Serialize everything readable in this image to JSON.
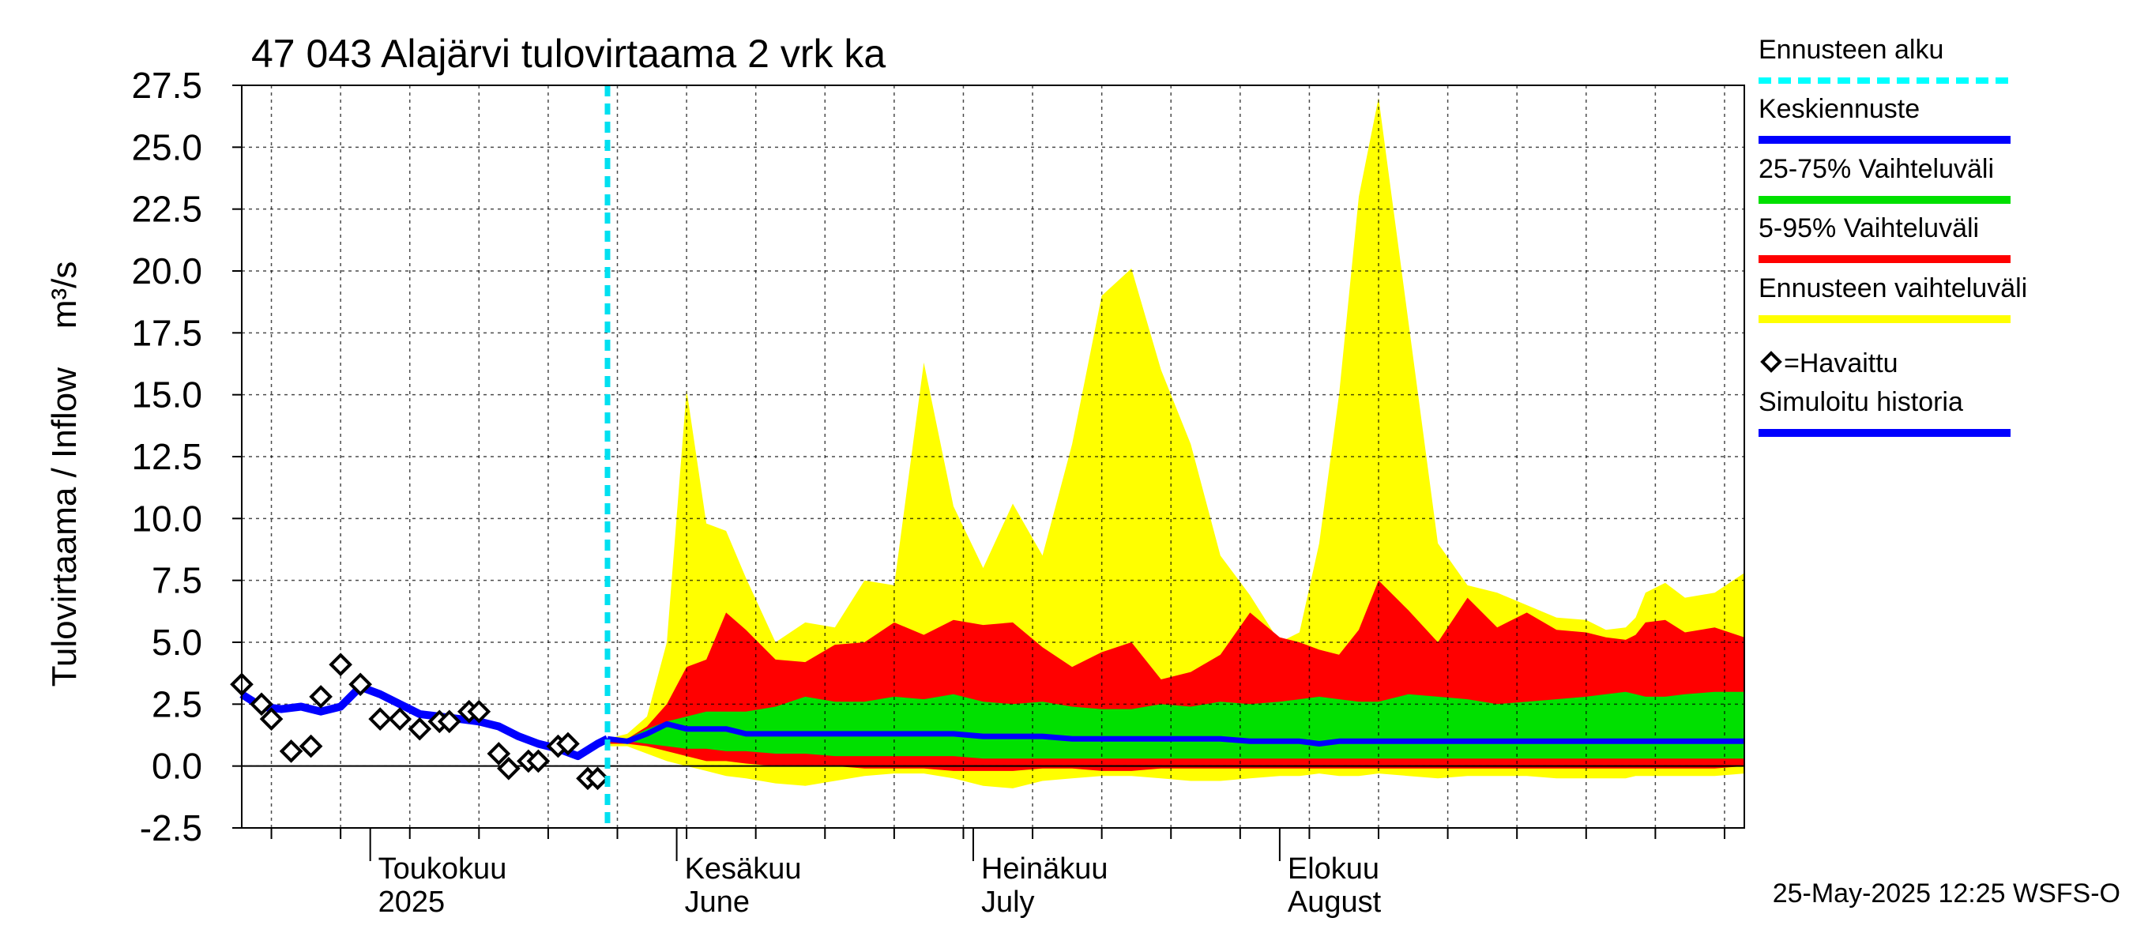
{
  "chart_data": {
    "type": "area",
    "title": "47 043 Alajärvi tulovirtaama 2 vrk ka",
    "ylabel": "Tulovirtaama / Inflow    m³/s",
    "ylim": [
      -2.5,
      27.5
    ],
    "yticks": [
      "27.5",
      "25.0",
      "22.5",
      "20.0",
      "17.5",
      "15.0",
      "12.5",
      "10.0",
      "7.5",
      "5.0",
      "2.5",
      "0.0",
      "-2.5"
    ],
    "ytick_values": [
      27.5,
      25.0,
      22.5,
      20.0,
      17.5,
      15.0,
      12.5,
      10.0,
      7.5,
      5.0,
      2.5,
      0.0,
      -2.5
    ],
    "x_start": "2025-04-18",
    "x_end": "2025-09-17",
    "forecast_start": "2025-05-25",
    "month_labels": [
      {
        "date": "2025-05-01",
        "line1": "Toukokuu",
        "line2": "2025"
      },
      {
        "date": "2025-06-01",
        "line1": "Kesäkuu",
        "line2": "June"
      },
      {
        "date": "2025-07-01",
        "line1": "Heinäkuu",
        "line2": "July"
      },
      {
        "date": "2025-08-01",
        "line1": "Elokuu",
        "line2": "August"
      }
    ],
    "forecast_x": [
      "2025-05-25",
      "2025-05-27",
      "2025-05-29",
      "2025-05-31",
      "2025-06-02",
      "2025-06-04",
      "2025-06-06",
      "2025-06-08",
      "2025-06-11",
      "2025-06-14",
      "2025-06-17",
      "2025-06-20",
      "2025-06-23",
      "2025-06-26",
      "2025-06-29",
      "2025-07-02",
      "2025-07-05",
      "2025-07-08",
      "2025-07-11",
      "2025-07-14",
      "2025-07-17",
      "2025-07-20",
      "2025-07-23",
      "2025-07-26",
      "2025-07-29",
      "2025-08-01",
      "2025-08-03",
      "2025-08-05",
      "2025-08-07",
      "2025-08-09",
      "2025-08-11",
      "2025-08-14",
      "2025-08-17",
      "2025-08-20",
      "2025-08-23",
      "2025-08-26",
      "2025-08-29",
      "2025-09-01",
      "2025-09-03",
      "2025-09-05",
      "2025-09-06",
      "2025-09-07",
      "2025-09-09",
      "2025-09-11",
      "2025-09-14",
      "2025-09-17"
    ],
    "series": [
      {
        "name": "Ennusteen vaihteluväli",
        "color": "#ffff00",
        "upper": [
          1.1,
          1.3,
          2.0,
          5.0,
          15.2,
          9.8,
          9.5,
          7.6,
          5.0,
          5.8,
          5.6,
          7.5,
          7.3,
          16.3,
          10.5,
          8.0,
          10.6,
          8.5,
          13.0,
          19.0,
          20.1,
          16.0,
          13.0,
          8.5,
          6.9,
          5.0,
          5.4,
          9.0,
          15.0,
          23.0,
          27.0,
          18.0,
          9.0,
          7.3,
          7.0,
          6.5,
          6.0,
          5.9,
          5.5,
          5.6,
          6.0,
          7.0,
          7.4,
          6.8,
          7.0,
          7.8
        ],
        "lower": [
          0.8,
          0.8,
          0.5,
          0.2,
          0.0,
          -0.2,
          -0.4,
          -0.5,
          -0.7,
          -0.8,
          -0.6,
          -0.4,
          -0.3,
          -0.3,
          -0.5,
          -0.8,
          -0.9,
          -0.6,
          -0.5,
          -0.4,
          -0.4,
          -0.5,
          -0.6,
          -0.6,
          -0.5,
          -0.4,
          -0.4,
          -0.3,
          -0.4,
          -0.4,
          -0.3,
          -0.4,
          -0.5,
          -0.4,
          -0.4,
          -0.4,
          -0.5,
          -0.5,
          -0.5,
          -0.5,
          -0.4,
          -0.4,
          -0.4,
          -0.4,
          -0.4,
          -0.3
        ]
      },
      {
        "name": "5-95% Vaihteluväli",
        "color": "#ff0000",
        "upper": [
          1.0,
          1.1,
          1.6,
          2.5,
          4.0,
          4.3,
          6.2,
          5.5,
          4.3,
          4.2,
          4.9,
          5.0,
          5.8,
          5.3,
          5.9,
          5.7,
          5.8,
          4.8,
          4.0,
          4.6,
          5.0,
          3.5,
          3.8,
          4.5,
          6.2,
          5.2,
          5.0,
          4.7,
          4.5,
          5.5,
          7.5,
          6.3,
          5.0,
          6.8,
          5.6,
          6.2,
          5.5,
          5.4,
          5.2,
          5.1,
          5.3,
          5.8,
          5.9,
          5.4,
          5.6,
          5.2
        ],
        "lower": [
          0.9,
          0.9,
          0.8,
          0.6,
          0.4,
          0.2,
          0.2,
          0.1,
          0.0,
          0.0,
          0.0,
          -0.1,
          -0.1,
          -0.1,
          -0.2,
          -0.2,
          -0.2,
          -0.1,
          -0.1,
          -0.2,
          -0.2,
          -0.1,
          -0.1,
          -0.1,
          -0.1,
          -0.1,
          -0.1,
          -0.1,
          -0.1,
          -0.1,
          -0.1,
          -0.1,
          -0.1,
          -0.1,
          -0.1,
          -0.1,
          -0.1,
          -0.1,
          -0.1,
          -0.1,
          -0.1,
          -0.1,
          -0.1,
          -0.1,
          -0.1,
          0.0
        ]
      },
      {
        "name": "25-75% Vaihteluväli",
        "color": "#00e000",
        "upper": [
          1.0,
          1.1,
          1.5,
          1.8,
          2.0,
          2.2,
          2.2,
          2.2,
          2.4,
          2.8,
          2.6,
          2.6,
          2.8,
          2.7,
          2.9,
          2.6,
          2.5,
          2.6,
          2.4,
          2.3,
          2.3,
          2.5,
          2.4,
          2.6,
          2.5,
          2.6,
          2.7,
          2.8,
          2.7,
          2.6,
          2.6,
          2.9,
          2.8,
          2.7,
          2.5,
          2.6,
          2.7,
          2.8,
          2.9,
          3.0,
          2.9,
          2.8,
          2.8,
          2.9,
          3.0,
          3.0
        ],
        "lower": [
          1.0,
          1.0,
          0.9,
          0.8,
          0.7,
          0.7,
          0.6,
          0.6,
          0.5,
          0.5,
          0.4,
          0.4,
          0.4,
          0.4,
          0.4,
          0.3,
          0.3,
          0.3,
          0.3,
          0.3,
          0.3,
          0.3,
          0.3,
          0.3,
          0.3,
          0.3,
          0.3,
          0.3,
          0.3,
          0.3,
          0.3,
          0.3,
          0.3,
          0.3,
          0.3,
          0.3,
          0.3,
          0.3,
          0.3,
          0.3,
          0.3,
          0.3,
          0.3,
          0.3,
          0.3,
          0.3
        ]
      },
      {
        "name": "Keskiennuste",
        "color": "#0000ff",
        "values": [
          1.1,
          1.0,
          1.3,
          1.7,
          1.5,
          1.5,
          1.5,
          1.3,
          1.3,
          1.3,
          1.3,
          1.3,
          1.3,
          1.3,
          1.3,
          1.2,
          1.2,
          1.2,
          1.1,
          1.1,
          1.1,
          1.1,
          1.1,
          1.1,
          1.0,
          1.0,
          1.0,
          0.9,
          1.0,
          1.0,
          1.0,
          1.0,
          1.0,
          1.0,
          1.0,
          1.0,
          1.0,
          1.0,
          1.0,
          1.0,
          1.0,
          1.0,
          1.0,
          1.0,
          1.0,
          1.0
        ]
      }
    ],
    "history": {
      "name": "Simuloitu historia",
      "color": "#0000ff",
      "x": [
        "2025-04-18",
        "2025-04-20",
        "2025-04-22",
        "2025-04-24",
        "2025-04-26",
        "2025-04-28",
        "2025-04-30",
        "2025-05-02",
        "2025-05-04",
        "2025-05-06",
        "2025-05-08",
        "2025-05-10",
        "2025-05-12",
        "2025-05-14",
        "2025-05-16",
        "2025-05-18",
        "2025-05-20",
        "2025-05-22",
        "2025-05-24",
        "2025-05-25"
      ],
      "values": [
        2.9,
        2.4,
        2.3,
        2.4,
        2.2,
        2.4,
        3.2,
        2.9,
        2.5,
        2.1,
        2.0,
        1.9,
        1.8,
        1.6,
        1.2,
        0.9,
        0.7,
        0.4,
        0.9,
        1.1
      ]
    },
    "observed": {
      "name": "=Havaittu",
      "x": [
        "2025-04-18",
        "2025-04-20",
        "2025-04-21",
        "2025-04-23",
        "2025-04-25",
        "2025-04-26",
        "2025-04-28",
        "2025-04-30",
        "2025-05-02",
        "2025-05-04",
        "2025-05-06",
        "2025-05-08",
        "2025-05-09",
        "2025-05-11",
        "2025-05-12",
        "2025-05-14",
        "2025-05-15",
        "2025-05-17",
        "2025-05-18",
        "2025-05-20",
        "2025-05-21",
        "2025-05-23",
        "2025-05-24"
      ],
      "values": [
        3.3,
        2.5,
        1.9,
        0.6,
        0.8,
        2.8,
        4.1,
        3.3,
        1.9,
        1.9,
        1.5,
        1.8,
        1.8,
        2.2,
        2.2,
        0.5,
        -0.1,
        0.2,
        0.2,
        0.8,
        0.9,
        -0.5,
        -0.5
      ]
    },
    "legend_position": "right",
    "legend": [
      {
        "label": "Ennusteen alku",
        "color": "#00ffff",
        "style": "dashed"
      },
      {
        "label": "Keskiennuste",
        "color": "#0000ff",
        "style": "solid"
      },
      {
        "label": "25-75% Vaihteluväli",
        "color": "#00e000",
        "style": "solid"
      },
      {
        "label": "5-95% Vaihteluväli",
        "color": "#ff0000",
        "style": "solid"
      },
      {
        "label": "Ennusteen vaihteluväli",
        "color": "#ffff00",
        "style": "solid"
      },
      {
        "label": "=Havaittu",
        "color": "#000000",
        "style": "diamond"
      },
      {
        "label": "Simuloitu historia",
        "color": "#0000ff",
        "style": "solid"
      }
    ],
    "grid": true
  },
  "footer": {
    "timestamp": "25-May-2025 12:25 WSFS-O"
  }
}
